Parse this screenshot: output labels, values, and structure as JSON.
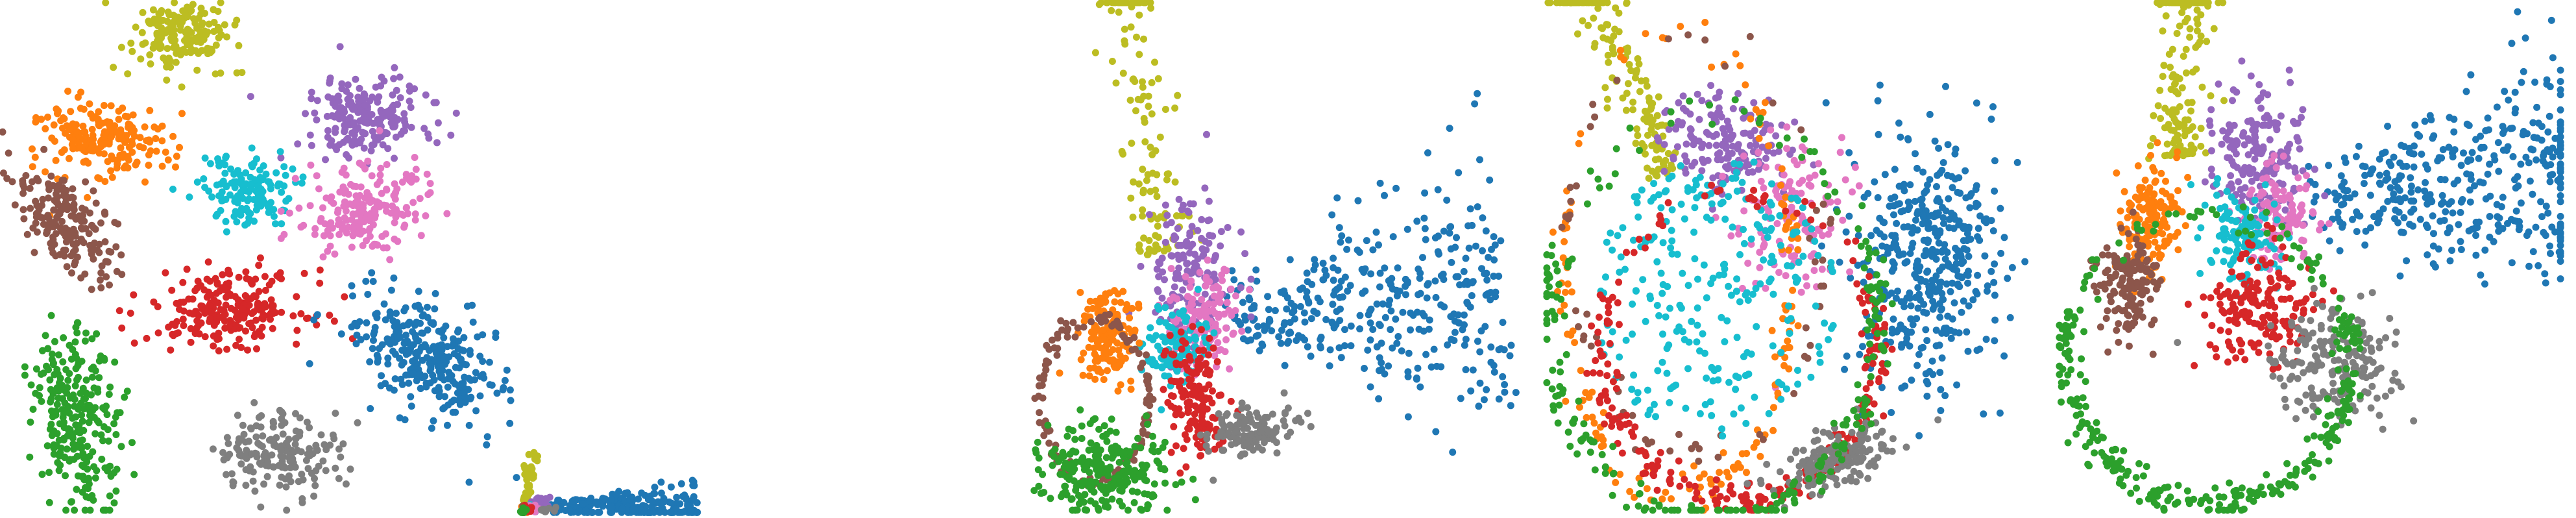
{
  "palette": {
    "blue": "#1f77b4",
    "orange": "#ff7f0e",
    "green": "#2ca02c",
    "red": "#d62728",
    "purple": "#9467bd",
    "brown": "#8c564b",
    "pink": "#e377c2",
    "gray": "#7f7f7f",
    "olive": "#bcbd22",
    "cyan": "#17becf"
  },
  "chart_data": [
    {
      "type": "scatter",
      "grid": false,
      "axes_visible": false,
      "xlim": [
        0,
        100
      ],
      "ylim": [
        0,
        100
      ],
      "clusters": [
        {
          "color": "olive",
          "shape": "blob",
          "n": 170,
          "cx": 35,
          "cy": 93,
          "rx": 9,
          "ry": 7,
          "rot": 0
        },
        {
          "color": "orange",
          "shape": "blob",
          "n": 190,
          "cx": 20,
          "cy": 73,
          "rx": 13,
          "ry": 7,
          "rot": -0.15
        },
        {
          "color": "purple",
          "shape": "blob",
          "n": 200,
          "cx": 71,
          "cy": 77,
          "rx": 13,
          "ry": 8,
          "rot": 0
        },
        {
          "color": "cyan",
          "shape": "blob",
          "n": 150,
          "cx": 48,
          "cy": 63,
          "rx": 9,
          "ry": 7,
          "rot": 0
        },
        {
          "color": "pink",
          "shape": "blob",
          "n": 190,
          "cx": 70,
          "cy": 59,
          "rx": 12,
          "ry": 8,
          "rot": 0.2
        },
        {
          "color": "brown",
          "shape": "blob",
          "n": 190,
          "cx": 13,
          "cy": 56,
          "rx": 7,
          "ry": 14,
          "rot": 0.6
        },
        {
          "color": "red",
          "shape": "blob",
          "n": 230,
          "cx": 44,
          "cy": 40,
          "rx": 15,
          "ry": 7,
          "rot": 0
        },
        {
          "color": "blue",
          "shape": "blob",
          "n": 300,
          "cx": 82,
          "cy": 30,
          "rx": 16,
          "ry": 10,
          "rot": -0.6
        },
        {
          "color": "green",
          "shape": "blob",
          "n": 260,
          "cx": 15,
          "cy": 18,
          "rx": 8,
          "ry": 17,
          "rot": 0.15
        },
        {
          "color": "gray",
          "shape": "blob",
          "n": 170,
          "cx": 54,
          "cy": 12,
          "rx": 12,
          "ry": 8,
          "rot": 0
        }
      ]
    },
    {
      "type": "scatter",
      "grid": false,
      "axes_visible": false,
      "xlim": [
        0,
        100
      ],
      "ylim": [
        0,
        100
      ],
      "clusters": [
        {
          "color": "blue",
          "shape": "fan",
          "n": 220,
          "cx": 15,
          "cy": 6,
          "rx": 80,
          "ry": 14,
          "rot": 0
        },
        {
          "color": "olive",
          "shape": "streak",
          "n": 45,
          "cx": 4,
          "cy": 14,
          "rx": 3,
          "ry": 30,
          "rot": 0
        },
        {
          "color": "purple",
          "shape": "blob",
          "n": 30,
          "cx": 10,
          "cy": 10,
          "rx": 5,
          "ry": 6,
          "rot": 0
        },
        {
          "color": "orange",
          "shape": "blob",
          "n": 15,
          "cx": 4,
          "cy": 6,
          "rx": 3,
          "ry": 5,
          "rot": 0
        },
        {
          "color": "brown",
          "shape": "blob",
          "n": 12,
          "cx": 3,
          "cy": 4,
          "rx": 2,
          "ry": 5,
          "rot": 0
        },
        {
          "color": "cyan",
          "shape": "blob",
          "n": 12,
          "cx": 6,
          "cy": 5,
          "rx": 3,
          "ry": 4,
          "rot": 0
        },
        {
          "color": "pink",
          "shape": "blob",
          "n": 10,
          "cx": 8,
          "cy": 5,
          "rx": 3,
          "ry": 4,
          "rot": 0
        },
        {
          "color": "red",
          "shape": "blob",
          "n": 12,
          "cx": 5,
          "cy": 3,
          "rx": 3,
          "ry": 3,
          "rot": 0
        },
        {
          "color": "gray",
          "shape": "blob",
          "n": 10,
          "cx": 14,
          "cy": 3,
          "rx": 5,
          "ry": 3,
          "rot": 0
        },
        {
          "color": "green",
          "shape": "blob",
          "n": 25,
          "cx": 2,
          "cy": 2,
          "rx": 2,
          "ry": 3,
          "rot": 0
        }
      ]
    },
    {
      "type": "scatter",
      "grid": false,
      "axes_visible": false,
      "xlim": [
        0,
        100
      ],
      "ylim": [
        0,
        100
      ],
      "clusters": [
        {
          "color": "blue",
          "shape": "fan",
          "n": 360,
          "cx": 40,
          "cy": 38,
          "rx": 58,
          "ry": 16,
          "rot": 0.12
        },
        {
          "color": "olive",
          "shape": "streak",
          "n": 140,
          "cx": 24,
          "cy": 62,
          "rx": 6,
          "ry": 38,
          "rot": 0.2
        },
        {
          "color": "purple",
          "shape": "blob",
          "n": 150,
          "cx": 32,
          "cy": 47,
          "rx": 9,
          "ry": 14,
          "rot": 0
        },
        {
          "color": "pink",
          "shape": "blob",
          "n": 130,
          "cx": 36,
          "cy": 38,
          "rx": 7,
          "ry": 11,
          "rot": 0
        },
        {
          "color": "cyan",
          "shape": "blob",
          "n": 110,
          "cx": 30,
          "cy": 32,
          "rx": 6,
          "ry": 7,
          "rot": 0
        },
        {
          "color": "orange",
          "shape": "blob",
          "n": 150,
          "cx": 15,
          "cy": 35,
          "rx": 6,
          "ry": 9,
          "rot": 0
        },
        {
          "color": "brown",
          "shape": "ring",
          "n": 130,
          "cx": 13,
          "cy": 22,
          "rx": 11,
          "ry": 16,
          "rot": 0
        },
        {
          "color": "red",
          "shape": "blob",
          "n": 150,
          "cx": 34,
          "cy": 22,
          "rx": 6,
          "ry": 12,
          "rot": 0
        },
        {
          "color": "gray",
          "shape": "blob",
          "n": 130,
          "cx": 45,
          "cy": 16,
          "rx": 9,
          "ry": 5,
          "rot": 0.3
        },
        {
          "color": "green",
          "shape": "blob",
          "n": 260,
          "cx": 15,
          "cy": 8,
          "rx": 13,
          "ry": 8,
          "rot": 0
        }
      ]
    },
    {
      "type": "scatter",
      "grid": false,
      "axes_visible": false,
      "xlim": [
        0,
        100
      ],
      "ylim": [
        0,
        100
      ],
      "clusters": [
        {
          "color": "blue",
          "shape": "blob",
          "n": 420,
          "cx": 74,
          "cy": 50,
          "rx": 14,
          "ry": 24,
          "rot": 0
        },
        {
          "color": "olive",
          "shape": "streak",
          "n": 150,
          "cx": 20,
          "cy": 74,
          "rx": 5,
          "ry": 30,
          "rot": 0.45
        },
        {
          "color": "purple",
          "shape": "blob",
          "n": 170,
          "cx": 35,
          "cy": 72,
          "rx": 12,
          "ry": 10,
          "rot": 0
        },
        {
          "color": "pink",
          "shape": "blob",
          "n": 130,
          "cx": 48,
          "cy": 58,
          "rx": 10,
          "ry": 14,
          "rot": 0
        },
        {
          "color": "orange",
          "shape": "arc",
          "n": 150,
          "cx": 26,
          "cy": 48,
          "rx": 22,
          "ry": 45,
          "rot": 0
        },
        {
          "color": "brown",
          "shape": "arc",
          "n": 60,
          "cx": 30,
          "cy": 52,
          "rx": 25,
          "ry": 40,
          "rot": 0
        },
        {
          "color": "cyan",
          "shape": "disk",
          "n": 260,
          "cx": 33,
          "cy": 42,
          "rx": 24,
          "ry": 28,
          "rot": 0
        },
        {
          "color": "red",
          "shape": "arc",
          "n": 250,
          "cx": 38,
          "cy": 32,
          "rx": 27,
          "ry": 30,
          "rot": 0
        },
        {
          "color": "gray",
          "shape": "blob",
          "n": 170,
          "cx": 57,
          "cy": 10,
          "rx": 12,
          "ry": 5,
          "rot": 0.35
        },
        {
          "color": "green",
          "shape": "arc",
          "n": 230,
          "cx": 33,
          "cy": 38,
          "rx": 32,
          "ry": 40,
          "rot": 0
        }
      ]
    },
    {
      "type": "scatter",
      "grid": false,
      "axes_visible": false,
      "xlim": [
        0,
        100
      ],
      "ylim": [
        0,
        100
      ],
      "clusters": [
        {
          "color": "blue",
          "shape": "fan",
          "n": 380,
          "cx": 50,
          "cy": 60,
          "rx": 55,
          "ry": 14,
          "rot": 0.15
        },
        {
          "color": "olive",
          "shape": "streak",
          "n": 170,
          "cx": 24,
          "cy": 78,
          "rx": 6,
          "ry": 28,
          "rot": 0.1
        },
        {
          "color": "purple",
          "shape": "blob",
          "n": 180,
          "cx": 40,
          "cy": 70,
          "rx": 9,
          "ry": 12,
          "rot": 0
        },
        {
          "color": "pink",
          "shape": "blob",
          "n": 110,
          "cx": 44,
          "cy": 58,
          "rx": 7,
          "ry": 9,
          "rot": 0
        },
        {
          "color": "cyan",
          "shape": "blob",
          "n": 120,
          "cx": 36,
          "cy": 54,
          "rx": 7,
          "ry": 8,
          "rot": 0
        },
        {
          "color": "orange",
          "shape": "blob",
          "n": 160,
          "cx": 18,
          "cy": 57,
          "rx": 6,
          "ry": 11,
          "rot": 0
        },
        {
          "color": "brown",
          "shape": "blob",
          "n": 150,
          "cx": 14,
          "cy": 45,
          "rx": 6,
          "ry": 11,
          "rot": 0
        },
        {
          "color": "red",
          "shape": "blob",
          "n": 170,
          "cx": 40,
          "cy": 40,
          "rx": 11,
          "ry": 11,
          "rot": 0
        },
        {
          "color": "gray",
          "shape": "blob",
          "n": 190,
          "cx": 55,
          "cy": 29,
          "rx": 13,
          "ry": 11,
          "rot": 0
        },
        {
          "color": "green",
          "shape": "arc",
          "n": 320,
          "cx": 30,
          "cy": 30,
          "rx": 28,
          "ry": 28,
          "rot": 0
        }
      ]
    }
  ]
}
